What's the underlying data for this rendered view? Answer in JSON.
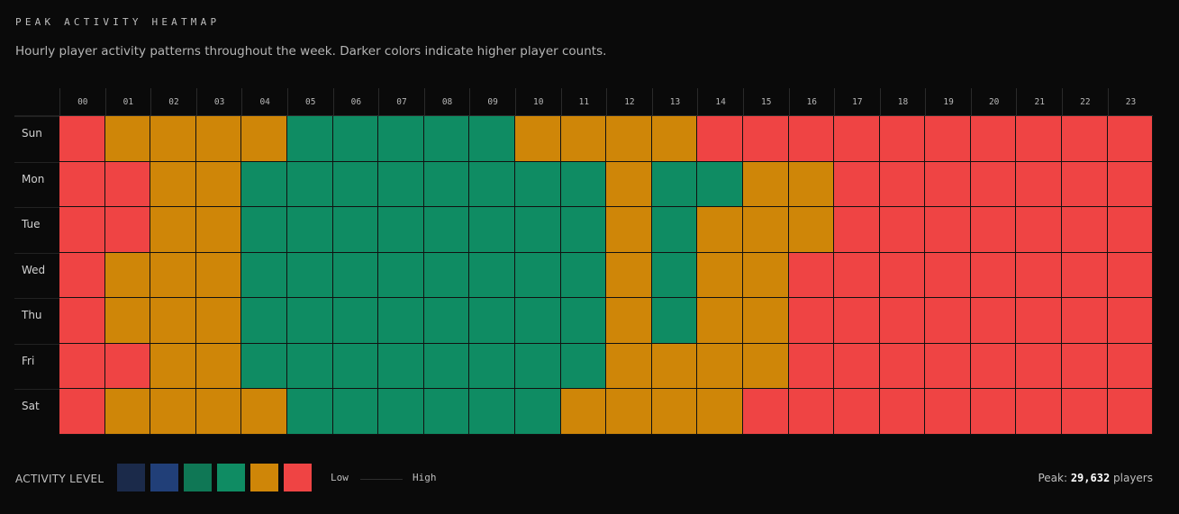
{
  "header": {
    "title": "PEAK ACTIVITY HEATMAP",
    "subtitle": "Hourly player activity patterns throughout the week. Darker colors indicate higher player counts."
  },
  "chart_data": {
    "type": "heatmap",
    "x": [
      "00",
      "01",
      "02",
      "03",
      "04",
      "05",
      "06",
      "07",
      "08",
      "09",
      "10",
      "11",
      "12",
      "13",
      "14",
      "15",
      "16",
      "17",
      "18",
      "19",
      "20",
      "21",
      "22",
      "23"
    ],
    "y": [
      "Sun",
      "Mon",
      "Tue",
      "Wed",
      "Thu",
      "Fri",
      "Sat"
    ],
    "level_colors": [
      "#1b2a4a",
      "#213f78",
      "#0f7755",
      "#0f8c63",
      "#cf8608",
      "#ef4444"
    ],
    "levels": [
      [
        5,
        4,
        4,
        4,
        4,
        3,
        3,
        3,
        3,
        3,
        4,
        4,
        4,
        4,
        5,
        5,
        5,
        5,
        5,
        5,
        5,
        5,
        5,
        5
      ],
      [
        5,
        5,
        4,
        4,
        3,
        3,
        3,
        3,
        3,
        3,
        3,
        3,
        4,
        3,
        3,
        4,
        4,
        5,
        5,
        5,
        5,
        5,
        5,
        5
      ],
      [
        5,
        5,
        4,
        4,
        3,
        3,
        3,
        3,
        3,
        3,
        3,
        3,
        4,
        3,
        4,
        4,
        4,
        5,
        5,
        5,
        5,
        5,
        5,
        5
      ],
      [
        5,
        4,
        4,
        4,
        3,
        3,
        3,
        3,
        3,
        3,
        3,
        3,
        4,
        3,
        4,
        4,
        5,
        5,
        5,
        5,
        5,
        5,
        5,
        5
      ],
      [
        5,
        4,
        4,
        4,
        3,
        3,
        3,
        3,
        3,
        3,
        3,
        3,
        4,
        3,
        4,
        4,
        5,
        5,
        5,
        5,
        5,
        5,
        5,
        5
      ],
      [
        5,
        5,
        4,
        4,
        3,
        3,
        3,
        3,
        3,
        3,
        3,
        3,
        4,
        4,
        4,
        4,
        5,
        5,
        5,
        5,
        5,
        5,
        5,
        5
      ],
      [
        5,
        4,
        4,
        4,
        4,
        3,
        3,
        3,
        3,
        3,
        3,
        4,
        4,
        4,
        4,
        5,
        5,
        5,
        5,
        5,
        5,
        5,
        5,
        5
      ]
    ]
  },
  "legend": {
    "label": "ACTIVITY LEVEL",
    "low": "Low",
    "high": "High"
  },
  "peak": {
    "prefix": "Peak:",
    "value": "29,632",
    "suffix": "players"
  }
}
